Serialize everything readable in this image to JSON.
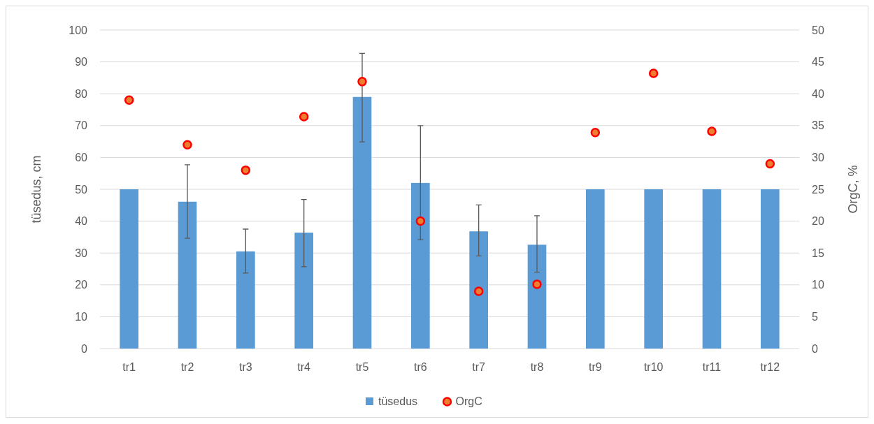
{
  "chart_data": {
    "type": "bar",
    "ylabel": "tüsedus, cm",
    "y2label": "OrgC, %",
    "categories": [
      "tr1",
      "tr2",
      "tr3",
      "tr4",
      "tr5",
      "tr6",
      "tr7",
      "tr8",
      "tr9",
      "tr10",
      "tr11",
      "tr12"
    ],
    "series": [
      {
        "name": "tüsedus",
        "type": "bar",
        "color": "#5b9bd5",
        "values": [
          50,
          46.1,
          30.5,
          36.4,
          79,
          52,
          36.8,
          32.6,
          50,
          50,
          50,
          50
        ],
        "errors": [
          null,
          [
            34.6,
            57.7
          ],
          [
            23.7,
            37.5
          ],
          [
            25.7,
            46.8
          ],
          [
            64.9,
            92.7
          ],
          [
            34.2,
            70
          ],
          [
            29.1,
            45.1
          ],
          [
            24,
            41.7
          ],
          null,
          null,
          null,
          null
        ]
      },
      {
        "name": "OrgC",
        "type": "scatter",
        "axis": "y2",
        "color": "#ed7d31",
        "values": [
          39,
          32,
          28,
          36.4,
          41.9,
          20,
          9,
          10.1,
          33.9,
          43.2,
          34.1,
          29
        ]
      }
    ],
    "ylim": [
      0,
      100
    ],
    "yticks": [
      0,
      10,
      20,
      30,
      40,
      50,
      60,
      70,
      80,
      90,
      100
    ],
    "y2lim": [
      0,
      50
    ],
    "y2ticks": [
      0,
      5,
      10,
      15,
      20,
      25,
      30,
      35,
      40,
      45,
      50
    ],
    "grid": "y",
    "legend": "bottom",
    "marker": "circle"
  }
}
